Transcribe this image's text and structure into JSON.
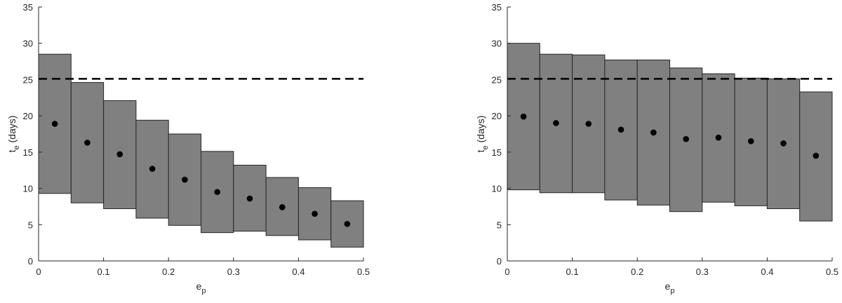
{
  "chart_data": [
    {
      "type": "box-range",
      "title": "",
      "xlabel_base": "e",
      "xlabel_sub": "p",
      "ylabel_base": "t",
      "ylabel_sub": "e",
      "ylabel_suffix": " (days)",
      "xlim": [
        0,
        0.5
      ],
      "ylim": [
        0,
        35
      ],
      "xticks": [
        "0",
        "0.1",
        "0.2",
        "0.3",
        "0.4",
        "0.5"
      ],
      "yticks": [
        "0",
        "5",
        "10",
        "15",
        "20",
        "25",
        "30",
        "35"
      ],
      "reference_line": 25.1,
      "bins": [
        {
          "x0": 0.0,
          "x1": 0.05,
          "low": 9.3,
          "high": 28.5,
          "mean": 18.9
        },
        {
          "x0": 0.05,
          "x1": 0.1,
          "low": 8.0,
          "high": 24.6,
          "mean": 16.3
        },
        {
          "x0": 0.1,
          "x1": 0.15,
          "low": 7.2,
          "high": 22.1,
          "mean": 14.7
        },
        {
          "x0": 0.15,
          "x1": 0.2,
          "low": 5.9,
          "high": 19.4,
          "mean": 12.7
        },
        {
          "x0": 0.2,
          "x1": 0.25,
          "low": 4.9,
          "high": 17.5,
          "mean": 11.2
        },
        {
          "x0": 0.25,
          "x1": 0.3,
          "low": 3.9,
          "high": 15.1,
          "mean": 9.5
        },
        {
          "x0": 0.3,
          "x1": 0.35,
          "low": 4.1,
          "high": 13.2,
          "mean": 8.6
        },
        {
          "x0": 0.35,
          "x1": 0.4,
          "low": 3.5,
          "high": 11.5,
          "mean": 7.4
        },
        {
          "x0": 0.4,
          "x1": 0.45,
          "low": 2.9,
          "high": 10.1,
          "mean": 6.5
        },
        {
          "x0": 0.45,
          "x1": 0.5,
          "low": 1.9,
          "high": 8.3,
          "mean": 5.1
        }
      ]
    },
    {
      "type": "box-range",
      "title": "",
      "xlabel_base": "e",
      "xlabel_sub": "p",
      "ylabel_base": "t",
      "ylabel_sub": "e",
      "ylabel_suffix": " (days)",
      "xlim": [
        0,
        0.5
      ],
      "ylim": [
        0,
        35
      ],
      "xticks": [
        "0",
        "0.1",
        "0.2",
        "0.3",
        "0.4",
        "0.5"
      ],
      "yticks": [
        "0",
        "5",
        "10",
        "15",
        "20",
        "25",
        "30",
        "35"
      ],
      "reference_line": 25.1,
      "bins": [
        {
          "x0": 0.0,
          "x1": 0.05,
          "low": 9.8,
          "high": 30.0,
          "mean": 19.9
        },
        {
          "x0": 0.05,
          "x1": 0.1,
          "low": 9.4,
          "high": 28.5,
          "mean": 19.0
        },
        {
          "x0": 0.1,
          "x1": 0.15,
          "low": 9.4,
          "high": 28.4,
          "mean": 18.9
        },
        {
          "x0": 0.15,
          "x1": 0.2,
          "low": 8.4,
          "high": 27.7,
          "mean": 18.1
        },
        {
          "x0": 0.2,
          "x1": 0.25,
          "low": 7.7,
          "high": 27.7,
          "mean": 17.7
        },
        {
          "x0": 0.25,
          "x1": 0.3,
          "low": 6.8,
          "high": 26.6,
          "mean": 16.8
        },
        {
          "x0": 0.3,
          "x1": 0.35,
          "low": 8.1,
          "high": 25.8,
          "mean": 17.0
        },
        {
          "x0": 0.35,
          "x1": 0.4,
          "low": 7.6,
          "high": 25.2,
          "mean": 16.5
        },
        {
          "x0": 0.4,
          "x1": 0.45,
          "low": 7.2,
          "high": 25.1,
          "mean": 16.2
        },
        {
          "x0": 0.45,
          "x1": 0.5,
          "low": 5.5,
          "high": 23.3,
          "mean": 14.5
        }
      ]
    }
  ]
}
